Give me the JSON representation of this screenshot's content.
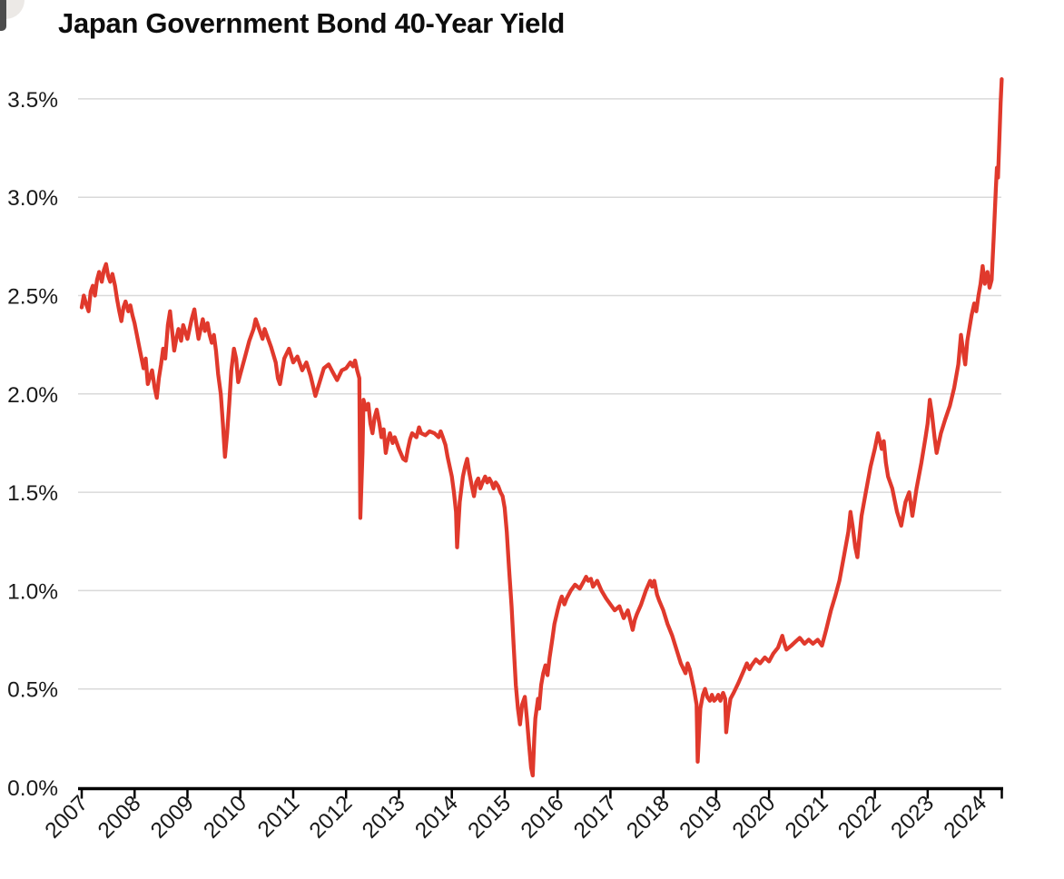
{
  "header": {
    "title": "Japan Government Bond 40-Year Yield"
  },
  "decorations": {
    "corner_artifact": "cropped-window-corner"
  },
  "chart_data": {
    "type": "line",
    "title": "Japan Government Bond 40-Year Yield",
    "series_name": "Japan 40-year government bond yield",
    "xlabel": "",
    "ylabel": "",
    "legend": "none",
    "grid": "horizontal",
    "line_color": "#e0392c",
    "grid_color": "#d9d9d9",
    "axis_color": "#000000",
    "label_color": "#1a1a1a",
    "xlim": [
      2007.0,
      2024.45
    ],
    "ylim": [
      0.0,
      3.6
    ],
    "x_ticks": [
      2007,
      2008,
      2009,
      2010,
      2011,
      2012,
      2013,
      2014,
      2015,
      2016,
      2017,
      2018,
      2019,
      2020,
      2021,
      2022,
      2023,
      2024
    ],
    "x_tick_labels": [
      "2007",
      "2008",
      "2009",
      "2010",
      "2011",
      "2012",
      "2013",
      "2014",
      "2015",
      "2016",
      "2017",
      "2018",
      "2019",
      "2020",
      "2021",
      "2022",
      "2023",
      "2024"
    ],
    "y_ticks": [
      0.0,
      0.5,
      1.0,
      1.5,
      2.0,
      2.5,
      3.0,
      3.5
    ],
    "y_tick_labels": [
      "0.0%",
      "0.5%",
      "1.0%",
      "1.5%",
      "2.0%",
      "2.5%",
      "3.0%",
      "3.5%"
    ],
    "points": [
      [
        2007.0,
        2.44
      ],
      [
        2007.04,
        2.5
      ],
      [
        2007.08,
        2.46
      ],
      [
        2007.13,
        2.42
      ],
      [
        2007.17,
        2.52
      ],
      [
        2007.21,
        2.55
      ],
      [
        2007.25,
        2.5
      ],
      [
        2007.29,
        2.58
      ],
      [
        2007.33,
        2.62
      ],
      [
        2007.38,
        2.57
      ],
      [
        2007.42,
        2.63
      ],
      [
        2007.46,
        2.66
      ],
      [
        2007.5,
        2.6
      ],
      [
        2007.54,
        2.57
      ],
      [
        2007.58,
        2.61
      ],
      [
        2007.63,
        2.55
      ],
      [
        2007.67,
        2.48
      ],
      [
        2007.71,
        2.42
      ],
      [
        2007.75,
        2.37
      ],
      [
        2007.79,
        2.44
      ],
      [
        2007.83,
        2.47
      ],
      [
        2007.88,
        2.42
      ],
      [
        2007.92,
        2.45
      ],
      [
        2007.96,
        2.4
      ],
      [
        2008.0,
        2.36
      ],
      [
        2008.08,
        2.25
      ],
      [
        2008.17,
        2.13
      ],
      [
        2008.21,
        2.18
      ],
      [
        2008.25,
        2.05
      ],
      [
        2008.33,
        2.12
      ],
      [
        2008.38,
        2.03
      ],
      [
        2008.42,
        1.98
      ],
      [
        2008.46,
        2.08
      ],
      [
        2008.5,
        2.15
      ],
      [
        2008.54,
        2.23
      ],
      [
        2008.58,
        2.18
      ],
      [
        2008.63,
        2.35
      ],
      [
        2008.67,
        2.42
      ],
      [
        2008.71,
        2.32
      ],
      [
        2008.75,
        2.22
      ],
      [
        2008.79,
        2.28
      ],
      [
        2008.83,
        2.33
      ],
      [
        2008.88,
        2.27
      ],
      [
        2008.92,
        2.35
      ],
      [
        2009.0,
        2.28
      ],
      [
        2009.04,
        2.33
      ],
      [
        2009.08,
        2.38
      ],
      [
        2009.13,
        2.43
      ],
      [
        2009.17,
        2.35
      ],
      [
        2009.21,
        2.28
      ],
      [
        2009.25,
        2.33
      ],
      [
        2009.29,
        2.38
      ],
      [
        2009.33,
        2.32
      ],
      [
        2009.38,
        2.36
      ],
      [
        2009.42,
        2.3
      ],
      [
        2009.46,
        2.26
      ],
      [
        2009.5,
        2.3
      ],
      [
        2009.54,
        2.22
      ],
      [
        2009.58,
        2.1
      ],
      [
        2009.63,
        2.0
      ],
      [
        2009.67,
        1.85
      ],
      [
        2009.71,
        1.68
      ],
      [
        2009.75,
        1.8
      ],
      [
        2009.79,
        1.95
      ],
      [
        2009.83,
        2.12
      ],
      [
        2009.88,
        2.23
      ],
      [
        2009.92,
        2.18
      ],
      [
        2009.96,
        2.06
      ],
      [
        2010.0,
        2.1
      ],
      [
        2010.08,
        2.18
      ],
      [
        2010.17,
        2.27
      ],
      [
        2010.25,
        2.33
      ],
      [
        2010.29,
        2.38
      ],
      [
        2010.33,
        2.35
      ],
      [
        2010.42,
        2.28
      ],
      [
        2010.46,
        2.33
      ],
      [
        2010.5,
        2.3
      ],
      [
        2010.58,
        2.24
      ],
      [
        2010.67,
        2.16
      ],
      [
        2010.71,
        2.08
      ],
      [
        2010.75,
        2.05
      ],
      [
        2010.83,
        2.18
      ],
      [
        2010.92,
        2.23
      ],
      [
        2011.0,
        2.16
      ],
      [
        2011.08,
        2.19
      ],
      [
        2011.17,
        2.12
      ],
      [
        2011.25,
        2.16
      ],
      [
        2011.33,
        2.09
      ],
      [
        2011.42,
        1.99
      ],
      [
        2011.5,
        2.06
      ],
      [
        2011.58,
        2.13
      ],
      [
        2011.67,
        2.15
      ],
      [
        2011.75,
        2.11
      ],
      [
        2011.83,
        2.07
      ],
      [
        2011.92,
        2.12
      ],
      [
        2012.0,
        2.13
      ],
      [
        2012.08,
        2.16
      ],
      [
        2012.13,
        2.14
      ],
      [
        2012.17,
        2.17
      ],
      [
        2012.21,
        2.12
      ],
      [
        2012.25,
        2.08
      ],
      [
        2012.27,
        1.37
      ],
      [
        2012.31,
        1.7
      ],
      [
        2012.33,
        1.97
      ],
      [
        2012.38,
        1.92
      ],
      [
        2012.42,
        1.95
      ],
      [
        2012.46,
        1.85
      ],
      [
        2012.5,
        1.8
      ],
      [
        2012.54,
        1.88
      ],
      [
        2012.58,
        1.92
      ],
      [
        2012.63,
        1.85
      ],
      [
        2012.67,
        1.78
      ],
      [
        2012.71,
        1.82
      ],
      [
        2012.75,
        1.7
      ],
      [
        2012.79,
        1.76
      ],
      [
        2012.83,
        1.8
      ],
      [
        2012.88,
        1.75
      ],
      [
        2012.92,
        1.78
      ],
      [
        2013.0,
        1.72
      ],
      [
        2013.08,
        1.67
      ],
      [
        2013.13,
        1.66
      ],
      [
        2013.17,
        1.72
      ],
      [
        2013.21,
        1.77
      ],
      [
        2013.25,
        1.8
      ],
      [
        2013.33,
        1.78
      ],
      [
        2013.38,
        1.83
      ],
      [
        2013.42,
        1.8
      ],
      [
        2013.5,
        1.79
      ],
      [
        2013.58,
        1.81
      ],
      [
        2013.67,
        1.8
      ],
      [
        2013.75,
        1.78
      ],
      [
        2013.79,
        1.81
      ],
      [
        2013.83,
        1.78
      ],
      [
        2013.88,
        1.74
      ],
      [
        2013.92,
        1.68
      ],
      [
        2014.0,
        1.58
      ],
      [
        2014.04,
        1.5
      ],
      [
        2014.08,
        1.4
      ],
      [
        2014.1,
        1.22
      ],
      [
        2014.15,
        1.45
      ],
      [
        2014.21,
        1.58
      ],
      [
        2014.25,
        1.63
      ],
      [
        2014.29,
        1.67
      ],
      [
        2014.33,
        1.6
      ],
      [
        2014.38,
        1.53
      ],
      [
        2014.42,
        1.48
      ],
      [
        2014.46,
        1.55
      ],
      [
        2014.5,
        1.57
      ],
      [
        2014.54,
        1.52
      ],
      [
        2014.58,
        1.55
      ],
      [
        2014.63,
        1.58
      ],
      [
        2014.67,
        1.55
      ],
      [
        2014.71,
        1.57
      ],
      [
        2014.75,
        1.55
      ],
      [
        2014.79,
        1.52
      ],
      [
        2014.83,
        1.55
      ],
      [
        2014.88,
        1.53
      ],
      [
        2014.92,
        1.5
      ],
      [
        2014.96,
        1.48
      ],
      [
        2015.0,
        1.42
      ],
      [
        2015.04,
        1.3
      ],
      [
        2015.08,
        1.12
      ],
      [
        2015.13,
        0.92
      ],
      [
        2015.17,
        0.72
      ],
      [
        2015.21,
        0.52
      ],
      [
        2015.25,
        0.4
      ],
      [
        2015.29,
        0.32
      ],
      [
        2015.33,
        0.42
      ],
      [
        2015.38,
        0.46
      ],
      [
        2015.42,
        0.35
      ],
      [
        2015.46,
        0.22
      ],
      [
        2015.5,
        0.1
      ],
      [
        2015.53,
        0.06
      ],
      [
        2015.56,
        0.25
      ],
      [
        2015.58,
        0.35
      ],
      [
        2015.63,
        0.45
      ],
      [
        2015.65,
        0.4
      ],
      [
        2015.69,
        0.52
      ],
      [
        2015.73,
        0.58
      ],
      [
        2015.77,
        0.62
      ],
      [
        2015.81,
        0.57
      ],
      [
        2015.85,
        0.66
      ],
      [
        2015.9,
        0.75
      ],
      [
        2015.94,
        0.83
      ],
      [
        2016.0,
        0.9
      ],
      [
        2016.04,
        0.94
      ],
      [
        2016.08,
        0.97
      ],
      [
        2016.13,
        0.93
      ],
      [
        2016.17,
        0.96
      ],
      [
        2016.25,
        1.0
      ],
      [
        2016.33,
        1.03
      ],
      [
        2016.42,
        1.01
      ],
      [
        2016.5,
        1.05
      ],
      [
        2016.54,
        1.07
      ],
      [
        2016.58,
        1.05
      ],
      [
        2016.63,
        1.06
      ],
      [
        2016.67,
        1.02
      ],
      [
        2016.75,
        1.05
      ],
      [
        2016.83,
        1.0
      ],
      [
        2016.92,
        0.96
      ],
      [
        2017.0,
        0.93
      ],
      [
        2017.08,
        0.9
      ],
      [
        2017.17,
        0.92
      ],
      [
        2017.25,
        0.86
      ],
      [
        2017.33,
        0.9
      ],
      [
        2017.42,
        0.8
      ],
      [
        2017.46,
        0.85
      ],
      [
        2017.5,
        0.88
      ],
      [
        2017.58,
        0.93
      ],
      [
        2017.67,
        1.0
      ],
      [
        2017.75,
        1.05
      ],
      [
        2017.79,
        1.02
      ],
      [
        2017.83,
        1.05
      ],
      [
        2017.88,
        0.98
      ],
      [
        2017.92,
        0.95
      ],
      [
        2018.0,
        0.9
      ],
      [
        2018.08,
        0.83
      ],
      [
        2018.17,
        0.77
      ],
      [
        2018.25,
        0.7
      ],
      [
        2018.33,
        0.63
      ],
      [
        2018.42,
        0.58
      ],
      [
        2018.46,
        0.63
      ],
      [
        2018.5,
        0.6
      ],
      [
        2018.54,
        0.55
      ],
      [
        2018.58,
        0.5
      ],
      [
        2018.63,
        0.42
      ],
      [
        2018.65,
        0.13
      ],
      [
        2018.7,
        0.4
      ],
      [
        2018.75,
        0.47
      ],
      [
        2018.79,
        0.5
      ],
      [
        2018.83,
        0.46
      ],
      [
        2018.88,
        0.44
      ],
      [
        2018.92,
        0.47
      ],
      [
        2018.96,
        0.44
      ],
      [
        2019.0,
        0.45
      ],
      [
        2019.04,
        0.47
      ],
      [
        2019.08,
        0.44
      ],
      [
        2019.13,
        0.48
      ],
      [
        2019.17,
        0.45
      ],
      [
        2019.19,
        0.28
      ],
      [
        2019.23,
        0.38
      ],
      [
        2019.27,
        0.45
      ],
      [
        2019.33,
        0.48
      ],
      [
        2019.42,
        0.53
      ],
      [
        2019.5,
        0.58
      ],
      [
        2019.58,
        0.63
      ],
      [
        2019.63,
        0.6
      ],
      [
        2019.67,
        0.62
      ],
      [
        2019.75,
        0.65
      ],
      [
        2019.83,
        0.63
      ],
      [
        2019.92,
        0.66
      ],
      [
        2020.0,
        0.64
      ],
      [
        2020.08,
        0.68
      ],
      [
        2020.17,
        0.71
      ],
      [
        2020.25,
        0.77
      ],
      [
        2020.29,
        0.73
      ],
      [
        2020.33,
        0.7
      ],
      [
        2020.42,
        0.72
      ],
      [
        2020.5,
        0.74
      ],
      [
        2020.58,
        0.76
      ],
      [
        2020.67,
        0.73
      ],
      [
        2020.75,
        0.75
      ],
      [
        2020.83,
        0.73
      ],
      [
        2020.92,
        0.75
      ],
      [
        2021.0,
        0.72
      ],
      [
        2021.08,
        0.8
      ],
      [
        2021.17,
        0.9
      ],
      [
        2021.25,
        0.97
      ],
      [
        2021.33,
        1.05
      ],
      [
        2021.42,
        1.18
      ],
      [
        2021.5,
        1.3
      ],
      [
        2021.54,
        1.4
      ],
      [
        2021.58,
        1.33
      ],
      [
        2021.63,
        1.22
      ],
      [
        2021.67,
        1.17
      ],
      [
        2021.75,
        1.38
      ],
      [
        2021.83,
        1.5
      ],
      [
        2021.92,
        1.63
      ],
      [
        2022.0,
        1.72
      ],
      [
        2022.06,
        1.8
      ],
      [
        2022.13,
        1.72
      ],
      [
        2022.17,
        1.76
      ],
      [
        2022.21,
        1.65
      ],
      [
        2022.25,
        1.58
      ],
      [
        2022.33,
        1.52
      ],
      [
        2022.42,
        1.4
      ],
      [
        2022.5,
        1.33
      ],
      [
        2022.58,
        1.45
      ],
      [
        2022.65,
        1.5
      ],
      [
        2022.71,
        1.38
      ],
      [
        2022.79,
        1.52
      ],
      [
        2022.88,
        1.65
      ],
      [
        2022.96,
        1.78
      ],
      [
        2023.0,
        1.85
      ],
      [
        2023.04,
        1.97
      ],
      [
        2023.08,
        1.9
      ],
      [
        2023.13,
        1.78
      ],
      [
        2023.17,
        1.7
      ],
      [
        2023.25,
        1.8
      ],
      [
        2023.33,
        1.87
      ],
      [
        2023.42,
        1.94
      ],
      [
        2023.5,
        2.03
      ],
      [
        2023.58,
        2.15
      ],
      [
        2023.63,
        2.3
      ],
      [
        2023.67,
        2.22
      ],
      [
        2023.71,
        2.15
      ],
      [
        2023.75,
        2.27
      ],
      [
        2023.83,
        2.4
      ],
      [
        2023.88,
        2.46
      ],
      [
        2023.92,
        2.42
      ],
      [
        2023.96,
        2.5
      ],
      [
        2024.0,
        2.56
      ],
      [
        2024.04,
        2.65
      ],
      [
        2024.08,
        2.56
      ],
      [
        2024.13,
        2.62
      ],
      [
        2024.17,
        2.54
      ],
      [
        2024.21,
        2.58
      ],
      [
        2024.25,
        2.8
      ],
      [
        2024.29,
        3.05
      ],
      [
        2024.31,
        3.15
      ],
      [
        2024.33,
        3.1
      ],
      [
        2024.36,
        3.32
      ],
      [
        2024.38,
        3.48
      ],
      [
        2024.4,
        3.6
      ]
    ]
  }
}
